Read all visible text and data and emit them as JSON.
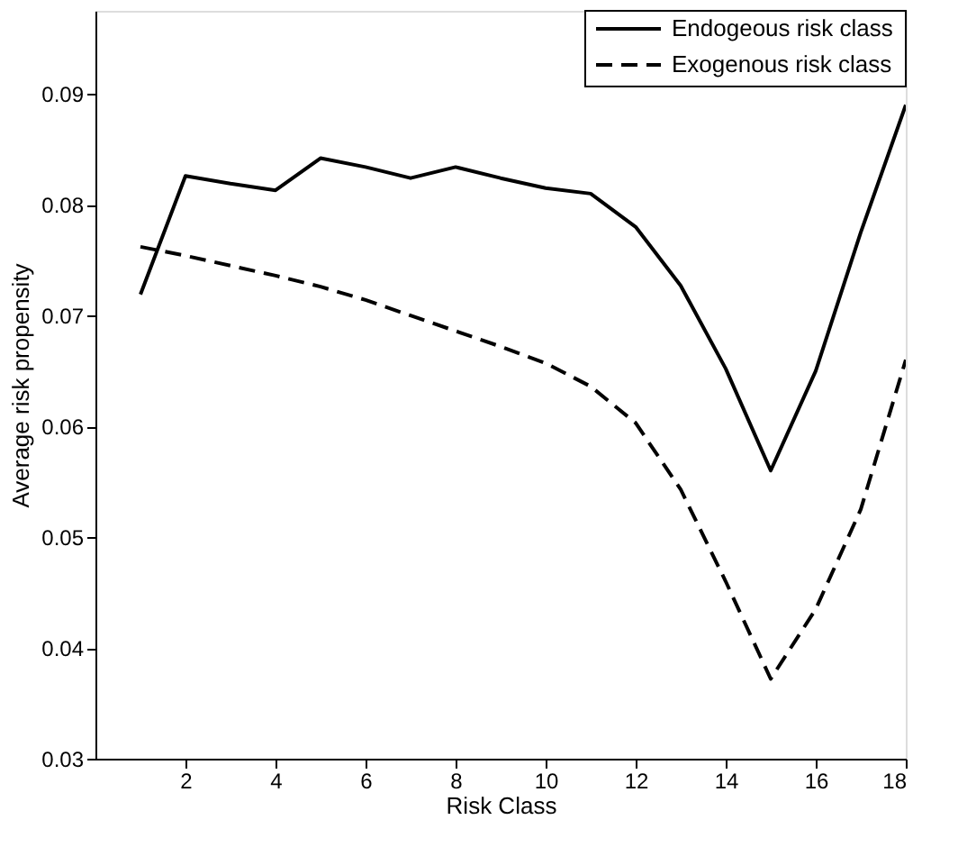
{
  "chart_data": {
    "type": "line",
    "xlabel": "Risk Class",
    "ylabel": "Average risk propensity",
    "x": [
      1,
      2,
      3,
      4,
      5,
      6,
      7,
      8,
      9,
      10,
      11,
      12,
      13,
      14,
      15,
      16,
      17,
      18
    ],
    "series": [
      {
        "name": "Endogeous risk class",
        "color": "#000000",
        "line_style": "solid",
        "values": [
          0.0719,
          0.0826,
          0.0819,
          0.0813,
          0.0842,
          0.0834,
          0.0824,
          0.0834,
          0.0824,
          0.0815,
          0.081,
          0.078,
          0.0727,
          0.0652,
          0.056,
          0.065,
          0.0775,
          0.089
        ]
      },
      {
        "name": "Exogenous risk class",
        "color": "#000000",
        "line_style": "dashed",
        "values": [
          0.0762,
          0.0754,
          0.0745,
          0.0736,
          0.0726,
          0.0714,
          0.07,
          0.0686,
          0.0672,
          0.0657,
          0.0636,
          0.0603,
          0.0543,
          0.046,
          0.0372,
          0.0435,
          0.0525,
          0.066
        ]
      }
    ],
    "xlim": [
      0,
      18
    ],
    "ylim": [
      0.03,
      0.0975
    ],
    "xticks": [
      2,
      4,
      6,
      8,
      10,
      12,
      14,
      16,
      18
    ],
    "yticks": [
      0.03,
      0.04,
      0.05,
      0.06,
      0.07,
      0.08,
      0.09
    ],
    "grid": false,
    "legend": "top right",
    "marker": "none"
  }
}
